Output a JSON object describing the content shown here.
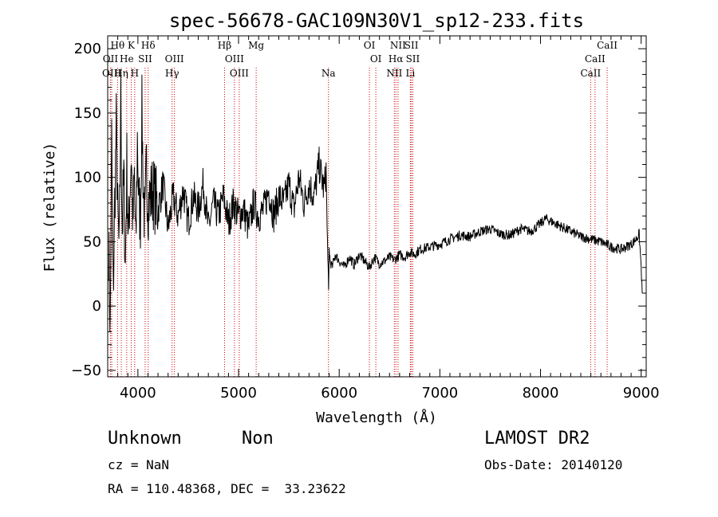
{
  "chart_data": {
    "type": "line",
    "title": "spec-56678-GAC109N30V1_sp12-233.fits",
    "xlabel": "Wavelength (Å)",
    "ylabel": "Flux (relative)",
    "xlim": [
      3700,
      9050
    ],
    "ylim": [
      -55,
      210
    ],
    "xticks": [
      4000,
      5000,
      6000,
      7000,
      8000,
      9000
    ],
    "yticks": [
      -50,
      0,
      50,
      100,
      150,
      200
    ],
    "xtick_labels": [
      "4000",
      "5000",
      "6000",
      "7000",
      "8000",
      "9000"
    ],
    "ytick_labels": [
      "−50",
      "0",
      "50",
      "100",
      "150",
      "200"
    ],
    "series": [
      {
        "name": "flux",
        "x": [
          3710,
          3725,
          3740,
          3755,
          3770,
          3785,
          3800,
          3815,
          3830,
          3845,
          3860,
          3875,
          3890,
          3905,
          3920,
          3935,
          3950,
          3965,
          3980,
          3995,
          4010,
          4025,
          4040,
          4055,
          4070,
          4085,
          4100,
          4150,
          4200,
          4250,
          4300,
          4350,
          4400,
          4450,
          4500,
          4550,
          4600,
          4650,
          4700,
          4750,
          4800,
          4850,
          4900,
          4950,
          5000,
          5050,
          5100,
          5150,
          5200,
          5250,
          5300,
          5350,
          5400,
          5450,
          5500,
          5550,
          5600,
          5650,
          5700,
          5750,
          5800,
          5850,
          5870,
          5880,
          5890,
          5895,
          5900,
          5910,
          5930,
          5960,
          6000,
          6050,
          6100,
          6150,
          6200,
          6250,
          6300,
          6350,
          6400,
          6450,
          6500,
          6550,
          6600,
          6650,
          6700,
          6750,
          6800,
          6900,
          7000,
          7100,
          7200,
          7300,
          7400,
          7500,
          7600,
          7700,
          7800,
          7900,
          8000,
          8050,
          8100,
          8150,
          8200,
          8300,
          8400,
          8500,
          8600,
          8700,
          8800,
          8900,
          8950,
          8980,
          9000,
          9010
        ],
        "y": [
          50,
          -20,
          130,
          10,
          80,
          140,
          70,
          40,
          160,
          60,
          100,
          30,
          110,
          50,
          90,
          120,
          60,
          100,
          40,
          130,
          80,
          70,
          150,
          90,
          60,
          110,
          80,
          90,
          75,
          95,
          60,
          85,
          70,
          90,
          65,
          85,
          75,
          95,
          60,
          80,
          70,
          85,
          65,
          80,
          70,
          75,
          60,
          80,
          70,
          75,
          90,
          70,
          85,
          80,
          95,
          75,
          100,
          80,
          95,
          85,
          110,
          90,
          105,
          60,
          30,
          10,
          45,
          35,
          30,
          40,
          35,
          30,
          38,
          32,
          40,
          35,
          30,
          38,
          33,
          35,
          38,
          36,
          40,
          38,
          42,
          40,
          44,
          46,
          48,
          52,
          55,
          54,
          58,
          60,
          56,
          55,
          60,
          58,
          64,
          68,
          66,
          64,
          62,
          58,
          54,
          52,
          50,
          46,
          44,
          48,
          52,
          56,
          30,
          10
        ]
      }
    ],
    "line_markers": [
      {
        "label": "Hθ",
        "x": 3798,
        "row": 0
      },
      {
        "label": "K",
        "x": 3934,
        "row": 0
      },
      {
        "label": "Hδ",
        "x": 4102,
        "row": 0
      },
      {
        "label": "Hβ",
        "x": 4861,
        "row": 0
      },
      {
        "label": "Mg",
        "x": 5175,
        "row": 0
      },
      {
        "label": "OI",
        "x": 6300,
        "row": 0
      },
      {
        "label": "NII",
        "x": 6584,
        "row": 0
      },
      {
        "label": "SII",
        "x": 6717,
        "row": 0
      },
      {
        "label": "CaII",
        "x": 8662,
        "row": 0
      },
      {
        "label": "OII",
        "x": 3727,
        "row": 1
      },
      {
        "label": "He",
        "x": 3889,
        "row": 1
      },
      {
        "label": "SII",
        "x": 4072,
        "row": 1
      },
      {
        "label": "OIII",
        "x": 4363,
        "row": 1
      },
      {
        "label": "OIII",
        "x": 4959,
        "row": 1
      },
      {
        "label": "OI",
        "x": 6364,
        "row": 1
      },
      {
        "label": "Hα",
        "x": 6563,
        "row": 1
      },
      {
        "label": "SII",
        "x": 6731,
        "row": 1
      },
      {
        "label": "CaII",
        "x": 8542,
        "row": 1
      },
      {
        "label": "OIII",
        "x": 3740,
        "row": 2
      },
      {
        "label": "Hη",
        "x": 3835,
        "row": 2
      },
      {
        "label": "H",
        "x": 3968,
        "row": 2
      },
      {
        "label": "Hγ",
        "x": 4340,
        "row": 2
      },
      {
        "label": "OIII",
        "x": 5007,
        "row": 2
      },
      {
        "label": "Na",
        "x": 5893,
        "row": 2
      },
      {
        "label": "NII",
        "x": 6548,
        "row": 2
      },
      {
        "label": "Li",
        "x": 6707,
        "row": 2
      },
      {
        "label": "CaII",
        "x": 8498,
        "row": 2
      }
    ]
  },
  "info": {
    "object_class": "Unknown",
    "subclass": "Non",
    "survey": "LAMOST DR2",
    "cz": "cz = NaN",
    "obs_date": "Obs-Date: 20140120",
    "coords": "RA = 110.48368, DEC =  33.23622"
  },
  "colors": {
    "axis": "#000000",
    "line": "#000000",
    "marker": "#cc0000"
  }
}
